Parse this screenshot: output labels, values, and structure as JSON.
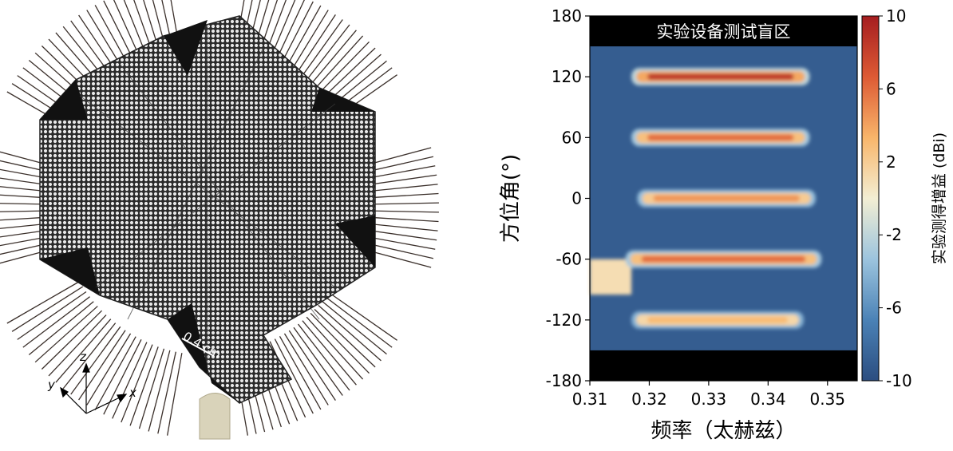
{
  "photo": {
    "scale_bar_label": "0.4 cm",
    "axes": {
      "x": "x",
      "y": "y",
      "z": "z"
    }
  },
  "chart_data": {
    "type": "heatmap",
    "title": "",
    "xlabel": "频率（太赫兹）",
    "ylabel": "方位角(°)",
    "x_ticks": [
      "0.31",
      "0.32",
      "0.33",
      "0.34",
      "0.35"
    ],
    "y_ticks": [
      "180",
      "120",
      "60",
      "0",
      "-60",
      "-120",
      "-180"
    ],
    "xlim": [
      0.31,
      0.355
    ],
    "ylim": [
      -180,
      180
    ],
    "blind_region_label": "实验设备测试盲区",
    "blind_regions": [
      [
        150,
        180
      ],
      [
        -180,
        -150
      ]
    ],
    "colorbar": {
      "label": "实验测得增益 (dBi)",
      "ticks": [
        "10",
        "6",
        "2",
        "-2",
        "-6",
        "-10"
      ],
      "range": [
        -10,
        10
      ],
      "colors": [
        "#2b4d80",
        "#4b82b6",
        "#9cc4de",
        "#f3eed3",
        "#f8b56a",
        "#dd5a34",
        "#a51d20"
      ]
    },
    "background_level_dBi": -9,
    "beams": [
      {
        "azimuth": 120,
        "freq_range": [
          0.317,
          0.347
        ],
        "peak_dBi": 8.5
      },
      {
        "azimuth": 60,
        "freq_range": [
          0.317,
          0.347
        ],
        "peak_dBi": 6
      },
      {
        "azimuth": 0,
        "freq_range": [
          0.318,
          0.348
        ],
        "peak_dBi": 4.5
      },
      {
        "azimuth": -60,
        "freq_range": [
          0.316,
          0.349
        ],
        "peak_dBi": 6
      },
      {
        "azimuth": -120,
        "freq_range": [
          0.317,
          0.346
        ],
        "peak_dBi": 3
      }
    ],
    "patches": [
      {
        "azimuth_range": [
          -95,
          -60
        ],
        "freq_range": [
          0.31,
          0.317
        ],
        "level_dBi": 1
      }
    ]
  }
}
